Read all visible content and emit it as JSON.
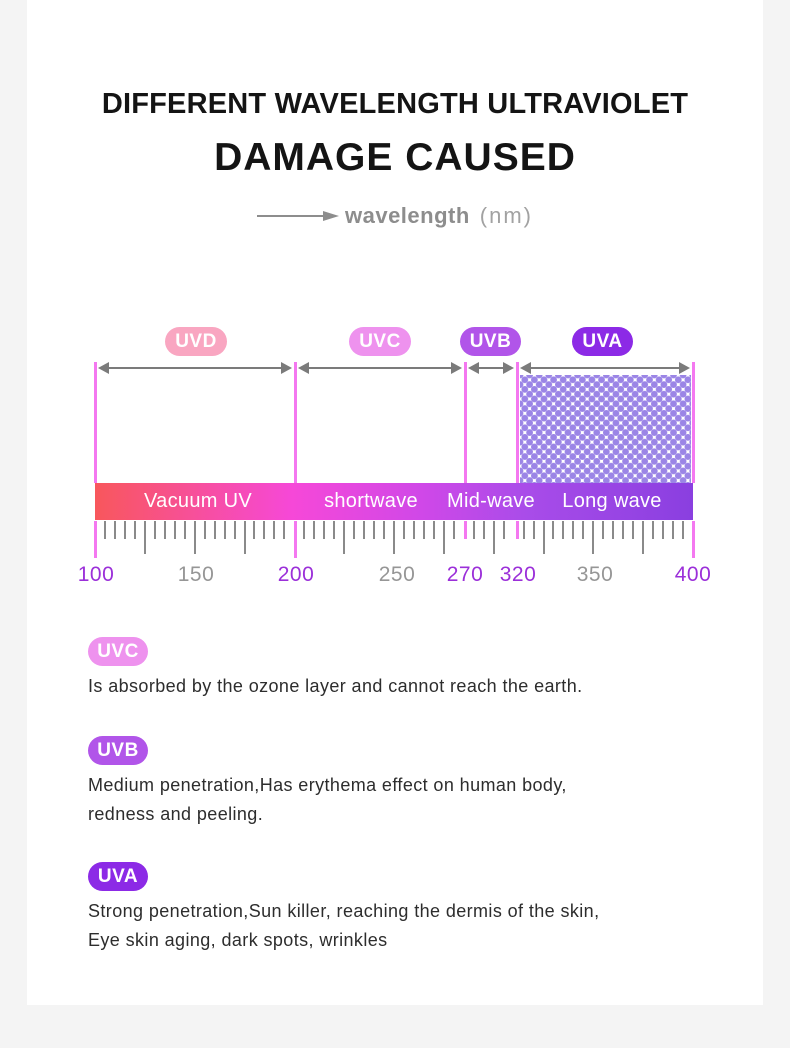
{
  "header": {
    "title_line1": "DIFFERENT WAVELENGTH ULTRAVIOLET",
    "title_line2": "DAMAGE CAUSED",
    "axis_caption_label": "wavelength",
    "axis_caption_unit": "(nm)"
  },
  "colors": {
    "uvd_badge": "#f9a6c1",
    "uvc_badge": "#ee92ee",
    "uvb_badge": "#b155e9",
    "uva_badge": "#8c2ae6",
    "magenta_line": "#f478f0",
    "tick_gray": "#8a8a8a",
    "number_purple": "#9b2fd9",
    "number_gray": "#969696",
    "dot_pattern": "#9b85e6",
    "bar_gradient": [
      "#f8575c",
      "#f648d8",
      "#8a3fe0"
    ]
  },
  "spectrum": {
    "top_badges": [
      {
        "label": "UVD"
      },
      {
        "label": "UVC"
      },
      {
        "label": "UVB"
      },
      {
        "label": "UVA"
      }
    ],
    "bands": [
      {
        "label": "Vacuum UV",
        "range_nm": [
          100,
          200
        ]
      },
      {
        "label": "shortwave",
        "range_nm": [
          200,
          270
        ]
      },
      {
        "label": "Mid-wave",
        "range_nm": [
          270,
          320
        ]
      },
      {
        "label": "Long wave",
        "range_nm": [
          320,
          400
        ]
      }
    ],
    "axis_numbers": [
      "100",
      "150",
      "200",
      "250",
      "270",
      "320",
      "350",
      "400"
    ]
  },
  "sections": [
    {
      "badge": "UVC",
      "lines": [
        "Is absorbed by the ozone layer and cannot reach the earth."
      ]
    },
    {
      "badge": "UVB",
      "lines": [
        "Medium penetration,Has erythema effect on human body,",
        "redness and peeling."
      ]
    },
    {
      "badge": "UVA",
      "lines": [
        "Strong penetration,Sun killer, reaching the dermis of the skin,",
        "Eye skin aging, dark spots, wrinkles"
      ]
    }
  ],
  "chart_data": {
    "type": "axis-diagram",
    "title": "DIFFERENT WAVELENGTH ULTRAVIOLET DAMAGE CAUSED",
    "xlabel": "wavelength (nm)",
    "axis_range": [
      100,
      400
    ],
    "tick_labels": [
      100,
      150,
      200,
      250,
      270,
      320,
      350,
      400
    ],
    "highlighted_ticks": [
      100,
      200,
      270,
      320,
      400
    ],
    "bands": [
      {
        "name": "UVD",
        "from_nm": 100,
        "to_nm": 200,
        "bar_label": "Vacuum UV"
      },
      {
        "name": "UVC",
        "from_nm": 200,
        "to_nm": 270,
        "bar_label": "shortwave"
      },
      {
        "name": "UVB",
        "from_nm": 270,
        "to_nm": 320,
        "bar_label": "Mid-wave"
      },
      {
        "name": "UVA",
        "from_nm": 320,
        "to_nm": 400,
        "bar_label": "Long wave"
      }
    ],
    "hatched_band": "UVA",
    "notes": [
      {
        "band": "UVC",
        "text": "Is absorbed by the ozone layer and cannot reach the earth."
      },
      {
        "band": "UVB",
        "text": "Medium penetration,Has erythema effect on human body, redness and peeling."
      },
      {
        "band": "UVA",
        "text": "Strong penetration,Sun killer, reaching the dermis of the skin, Eye skin aging, dark spots, wrinkles"
      }
    ]
  }
}
